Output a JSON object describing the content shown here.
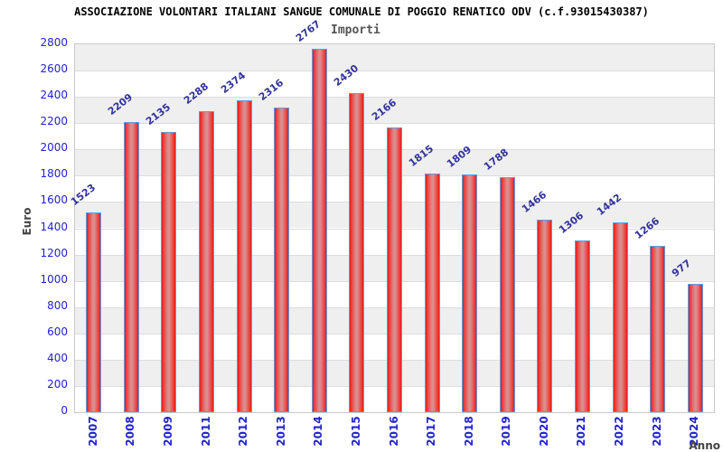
{
  "chart_data": {
    "type": "bar",
    "title": "ASSOCIAZIONE VOLONTARI ITALIANI SANGUE COMUNALE DI POGGIO RENATICO ODV (c.f.93015430387)",
    "legend": "Importi",
    "legend_position": "top-center",
    "xlabel": "Anno",
    "ylabel": "Euro",
    "categories": [
      "2007",
      "2008",
      "2009",
      "2011",
      "2012",
      "2013",
      "2014",
      "2015",
      "2016",
      "2017",
      "2018",
      "2019",
      "2020",
      "2021",
      "2022",
      "2023",
      "2024"
    ],
    "values": [
      1523,
      2209,
      2135,
      2288,
      2374,
      2316,
      2767,
      2430,
      2166,
      1815,
      1809,
      1788,
      1466,
      1306,
      1442,
      1266,
      977
    ],
    "ylim": [
      0,
      2800
    ],
    "ytick_step": 200,
    "grid": "horizontal-alternating-bands",
    "colors": {
      "bar_edge": "#dd1f1f",
      "bar_center": "#d98f8f",
      "bar_border": "#5b9ddb",
      "band_gray": "#efefef",
      "band_white": "#ffffff",
      "gridline": "#dddddd",
      "plot_border": "#c9c9c9",
      "tick_label": "#2323cc",
      "value_label": "#33339a",
      "axis_title": "#444444",
      "title_text": "#000000",
      "legend_text": "#555555"
    }
  }
}
